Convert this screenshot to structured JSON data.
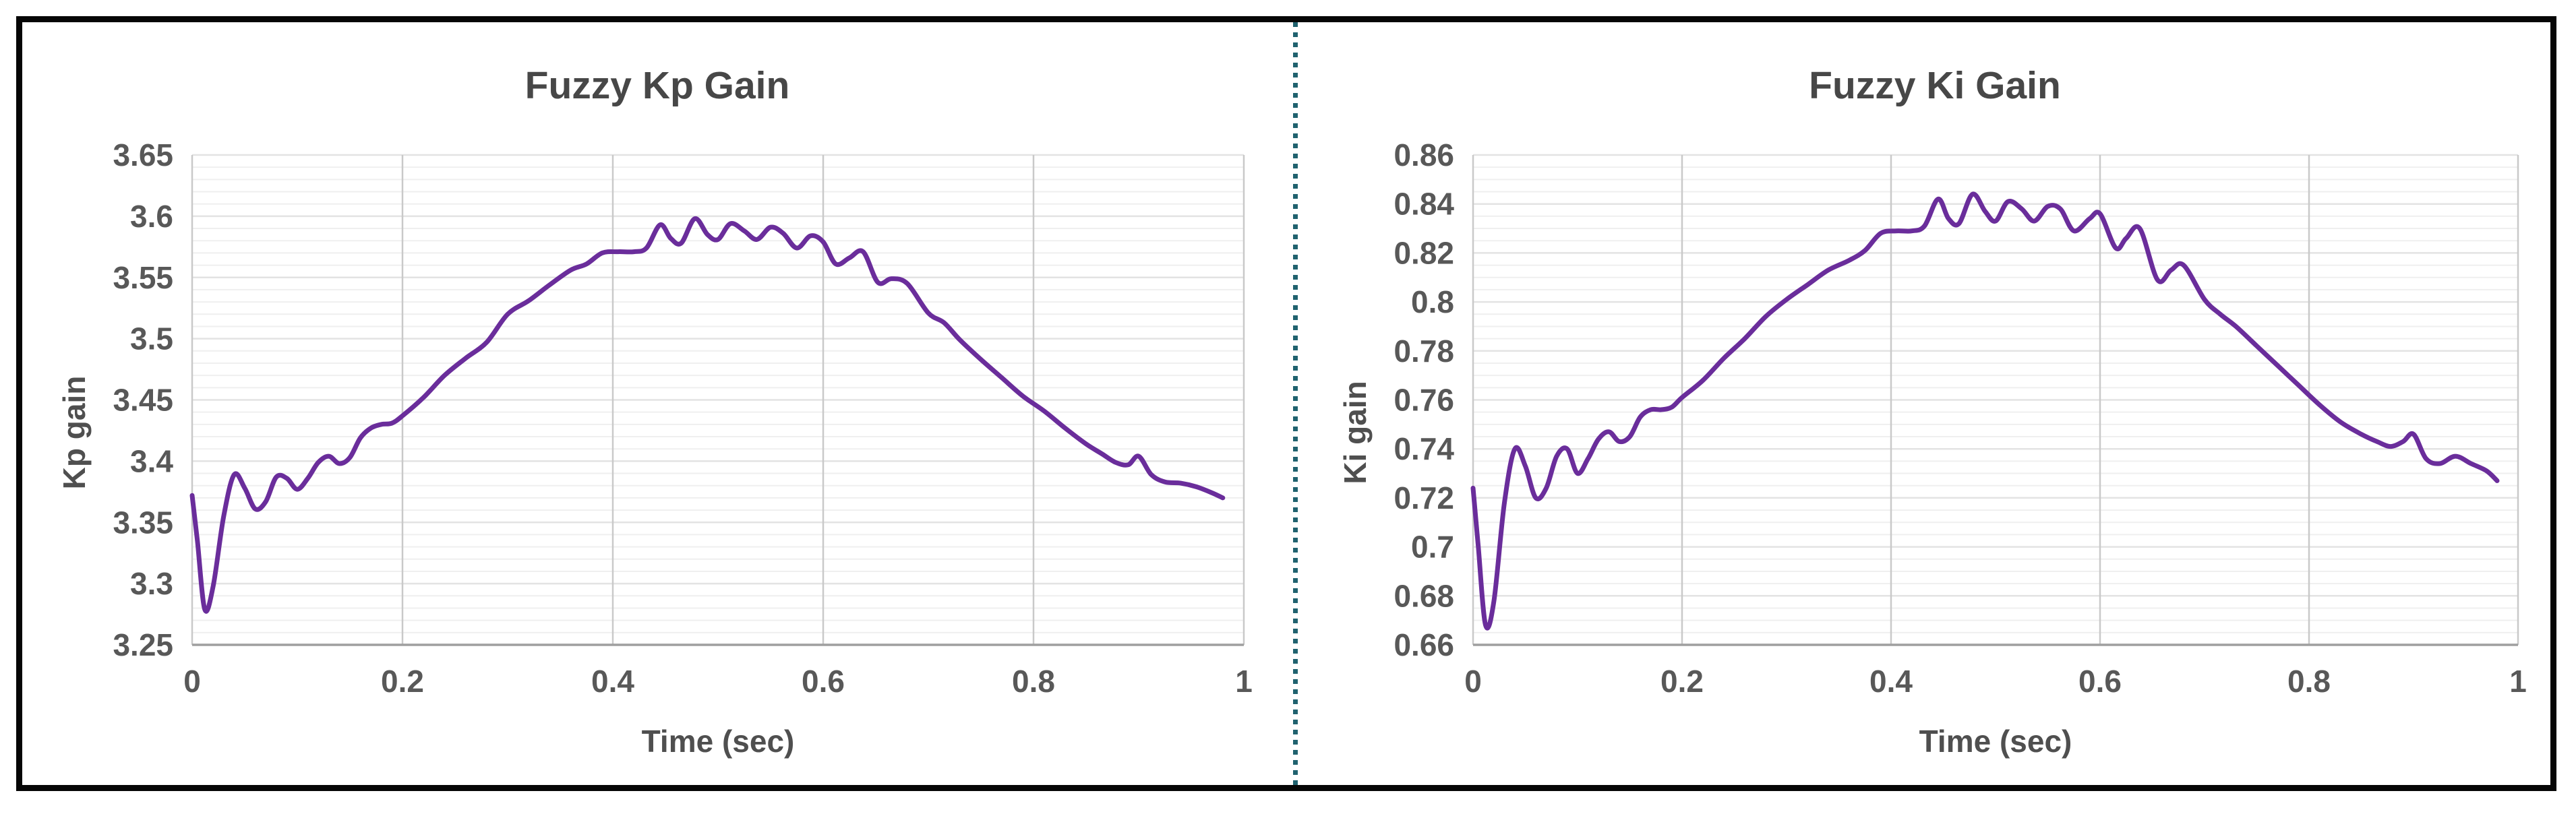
{
  "figure": {
    "background": "#ffffff",
    "border_color": "#060606",
    "divider_color": "#20626f",
    "plot_background": "#ffffff",
    "minor_grid_color": "#efefef",
    "major_grid_color": "#e3e3e3",
    "vertical_grid_color": "#c9c9c9",
    "y_axis_line_color": "#c9c9c9",
    "x_axis_line_color": "#9f9f9f",
    "tick_label_color": "#585858",
    "title_color": "#474747"
  },
  "chart_data": [
    {
      "type": "line",
      "title": "Fuzzy Kp Gain",
      "xlabel": "Time (sec)",
      "ylabel": "Kp gain",
      "xlim": [
        0,
        1
      ],
      "ylim": [
        3.25,
        3.65
      ],
      "x_ticks": [
        "0",
        "0.2",
        "0.4",
        "0.6",
        "0.8",
        "1"
      ],
      "y_ticks": [
        "3.25",
        "3.3",
        "3.35",
        "3.4",
        "3.45",
        "3.5",
        "3.55",
        "3.6",
        "3.65"
      ],
      "y_major_step": 0.05,
      "y_minor_step": 0.01,
      "grid": true,
      "legend_position": "none",
      "line_color": "#6A2D9B",
      "series": [
        {
          "name": "Kp gain",
          "points": [
            [
              0,
              3.372
            ],
            [
              0.005,
              3.335
            ],
            [
              0.012,
              3.279
            ],
            [
              0.02,
              3.298
            ],
            [
              0.03,
              3.355
            ],
            [
              0.04,
              3.389
            ],
            [
              0.05,
              3.378
            ],
            [
              0.06,
              3.361
            ],
            [
              0.07,
              3.367
            ],
            [
              0.08,
              3.387
            ],
            [
              0.09,
              3.386
            ],
            [
              0.1,
              3.377
            ],
            [
              0.11,
              3.386
            ],
            [
              0.12,
              3.399
            ],
            [
              0.13,
              3.404
            ],
            [
              0.14,
              3.398
            ],
            [
              0.15,
              3.403
            ],
            [
              0.16,
              3.419
            ],
            [
              0.17,
              3.427
            ],
            [
              0.18,
              3.43
            ],
            [
              0.19,
              3.431
            ],
            [
              0.2,
              3.437
            ],
            [
              0.22,
              3.452
            ],
            [
              0.24,
              3.47
            ],
            [
              0.26,
              3.484
            ],
            [
              0.28,
              3.497
            ],
            [
              0.3,
              3.52
            ],
            [
              0.32,
              3.531
            ],
            [
              0.34,
              3.544
            ],
            [
              0.36,
              3.556
            ],
            [
              0.375,
              3.561
            ],
            [
              0.39,
              3.57
            ],
            [
              0.405,
              3.571
            ],
            [
              0.42,
              3.571
            ],
            [
              0.432,
              3.574
            ],
            [
              0.445,
              3.593
            ],
            [
              0.455,
              3.582
            ],
            [
              0.465,
              3.578
            ],
            [
              0.478,
              3.598
            ],
            [
              0.49,
              3.585
            ],
            [
              0.5,
              3.581
            ],
            [
              0.512,
              3.594
            ],
            [
              0.525,
              3.588
            ],
            [
              0.537,
              3.581
            ],
            [
              0.55,
              3.591
            ],
            [
              0.562,
              3.586
            ],
            [
              0.575,
              3.574
            ],
            [
              0.588,
              3.584
            ],
            [
              0.6,
              3.579
            ],
            [
              0.612,
              3.561
            ],
            [
              0.625,
              3.566
            ],
            [
              0.638,
              3.571
            ],
            [
              0.652,
              3.546
            ],
            [
              0.665,
              3.549
            ],
            [
              0.68,
              3.545
            ],
            [
              0.7,
              3.521
            ],
            [
              0.715,
              3.513
            ],
            [
              0.73,
              3.499
            ],
            [
              0.75,
              3.483
            ],
            [
              0.77,
              3.468
            ],
            [
              0.79,
              3.453
            ],
            [
              0.81,
              3.441
            ],
            [
              0.83,
              3.427
            ],
            [
              0.85,
              3.414
            ],
            [
              0.865,
              3.406
            ],
            [
              0.878,
              3.399
            ],
            [
              0.89,
              3.397
            ],
            [
              0.9,
              3.404
            ],
            [
              0.912,
              3.389
            ],
            [
              0.925,
              3.383
            ],
            [
              0.94,
              3.382
            ],
            [
              0.955,
              3.379
            ],
            [
              0.97,
              3.374
            ],
            [
              0.98,
              3.37
            ]
          ]
        }
      ]
    },
    {
      "type": "line",
      "title": "Fuzzy Ki Gain",
      "xlabel": "Time (sec)",
      "ylabel": "Ki gain",
      "xlim": [
        0,
        1
      ],
      "ylim": [
        0.66,
        0.86
      ],
      "x_ticks": [
        "0",
        "0.2",
        "0.4",
        "0.6",
        "0.8",
        "1"
      ],
      "y_ticks": [
        "0.66",
        "0.68",
        "0.7",
        "0.72",
        "0.74",
        "0.76",
        "0.78",
        "0.8",
        "0.82",
        "0.84",
        "0.86"
      ],
      "y_major_step": 0.02,
      "y_minor_step": 0.005,
      "grid": true,
      "legend_position": "none",
      "line_color": "#6A2D9B",
      "series": [
        {
          "name": "Ki gain",
          "points": [
            [
              0,
              0.724
            ],
            [
              0.005,
              0.7
            ],
            [
              0.012,
              0.668
            ],
            [
              0.02,
              0.678
            ],
            [
              0.03,
              0.718
            ],
            [
              0.04,
              0.74
            ],
            [
              0.05,
              0.733
            ],
            [
              0.06,
              0.72
            ],
            [
              0.07,
              0.724
            ],
            [
              0.08,
              0.737
            ],
            [
              0.09,
              0.74
            ],
            [
              0.1,
              0.73
            ],
            [
              0.11,
              0.736
            ],
            [
              0.12,
              0.744
            ],
            [
              0.13,
              0.747
            ],
            [
              0.14,
              0.743
            ],
            [
              0.15,
              0.745
            ],
            [
              0.16,
              0.753
            ],
            [
              0.17,
              0.756
            ],
            [
              0.18,
              0.756
            ],
            [
              0.19,
              0.757
            ],
            [
              0.2,
              0.761
            ],
            [
              0.22,
              0.768
            ],
            [
              0.24,
              0.777
            ],
            [
              0.26,
              0.785
            ],
            [
              0.28,
              0.794
            ],
            [
              0.3,
              0.801
            ],
            [
              0.32,
              0.807
            ],
            [
              0.34,
              0.813
            ],
            [
              0.36,
              0.817
            ],
            [
              0.375,
              0.821
            ],
            [
              0.39,
              0.828
            ],
            [
              0.405,
              0.829
            ],
            [
              0.42,
              0.829
            ],
            [
              0.432,
              0.831
            ],
            [
              0.445,
              0.842
            ],
            [
              0.455,
              0.834
            ],
            [
              0.465,
              0.832
            ],
            [
              0.478,
              0.844
            ],
            [
              0.49,
              0.837
            ],
            [
              0.5,
              0.833
            ],
            [
              0.512,
              0.841
            ],
            [
              0.525,
              0.838
            ],
            [
              0.537,
              0.833
            ],
            [
              0.55,
              0.839
            ],
            [
              0.562,
              0.838
            ],
            [
              0.575,
              0.829
            ],
            [
              0.59,
              0.834
            ],
            [
              0.6,
              0.836
            ],
            [
              0.615,
              0.822
            ],
            [
              0.625,
              0.826
            ],
            [
              0.638,
              0.83
            ],
            [
              0.655,
              0.809
            ],
            [
              0.668,
              0.813
            ],
            [
              0.68,
              0.815
            ],
            [
              0.7,
              0.801
            ],
            [
              0.715,
              0.795
            ],
            [
              0.73,
              0.79
            ],
            [
              0.75,
              0.782
            ],
            [
              0.77,
              0.774
            ],
            [
              0.79,
              0.766
            ],
            [
              0.81,
              0.758
            ],
            [
              0.83,
              0.751
            ],
            [
              0.85,
              0.746
            ],
            [
              0.865,
              0.743
            ],
            [
              0.878,
              0.741
            ],
            [
              0.89,
              0.743
            ],
            [
              0.9,
              0.746
            ],
            [
              0.912,
              0.736
            ],
            [
              0.925,
              0.734
            ],
            [
              0.94,
              0.737
            ],
            [
              0.955,
              0.734
            ],
            [
              0.97,
              0.731
            ],
            [
              0.98,
              0.727
            ]
          ]
        }
      ]
    }
  ]
}
